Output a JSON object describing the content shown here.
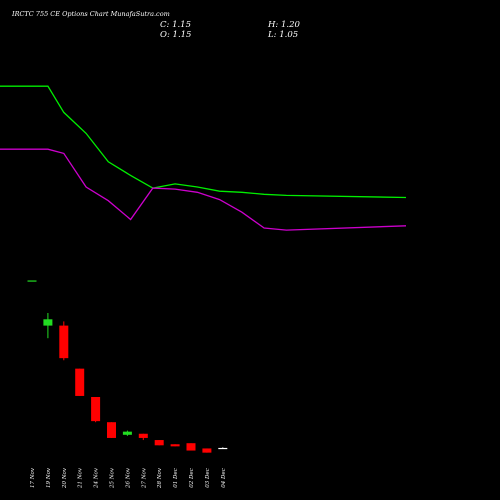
{
  "chart_data": {
    "type": "candlestick",
    "title": "IRCTC 755 CE Options  Chart MunafaSutra.com",
    "ohlc_readout": {
      "close": "C: 1.15",
      "open": "O: 1.15",
      "high": "H: 1.20",
      "low": "L: 1.05"
    },
    "categories": [
      "17 Nov",
      "19 Nov",
      "20 Nov",
      "21 Nov",
      "24 Nov",
      "25 Nov",
      "26 Nov",
      "27 Nov",
      "28 Nov",
      "01 Dec",
      "02 Dec",
      "03 Dec",
      "04 Dec"
    ],
    "candles": [
      {
        "open": 17.0,
        "high": 17.0,
        "low": 17.0,
        "close": 17.1
      },
      {
        "open": 12.8,
        "high": 14.0,
        "low": 11.6,
        "close": 13.4
      },
      {
        "open": 12.8,
        "high": 13.2,
        "low": 9.5,
        "close": 9.7
      },
      {
        "open": 8.7,
        "high": 8.7,
        "low": 6.1,
        "close": 6.1
      },
      {
        "open": 6.0,
        "high": 6.0,
        "low": 3.6,
        "close": 3.7
      },
      {
        "open": 3.6,
        "high": 3.6,
        "low": 2.1,
        "close": 2.1
      },
      {
        "open": 2.4,
        "high": 2.8,
        "low": 2.3,
        "close": 2.7
      },
      {
        "open": 2.5,
        "high": 2.5,
        "low": 1.9,
        "close": 2.1
      },
      {
        "open": 1.9,
        "high": 1.9,
        "low": 1.4,
        "close": 1.4
      },
      {
        "open": 1.5,
        "high": 1.5,
        "low": 1.3,
        "close": 1.3
      },
      {
        "open": 1.6,
        "high": 1.6,
        "low": 0.9,
        "close": 0.9
      },
      {
        "open": 1.1,
        "high": 1.1,
        "low": 0.7,
        "close": 0.7
      },
      {
        "open": 1.15,
        "high": 1.2,
        "low": 1.05,
        "close": 1.15
      }
    ],
    "price_range": [
      0,
      40
    ],
    "upper_band": [
      35.6,
      35.6,
      33.1,
      31.1,
      28.4,
      27.1,
      25.9,
      26.3,
      26.0,
      25.6,
      25.5,
      25.3,
      25.2
    ],
    "lower_band": [
      29.6,
      29.6,
      29.2,
      26.0,
      24.7,
      22.9,
      25.9,
      25.8,
      25.5,
      24.8,
      23.6,
      22.1,
      21.9
    ],
    "upper_band_extra": 25.0,
    "lower_band_extra": 22.3,
    "colors": {
      "background": "#000000",
      "bullish": "#22dd22",
      "bearish": "#ff0000",
      "doji": "#ffffff",
      "upper_band": "#00ee00",
      "lower_band": "#cc00cc",
      "text": "#ffffff"
    }
  }
}
